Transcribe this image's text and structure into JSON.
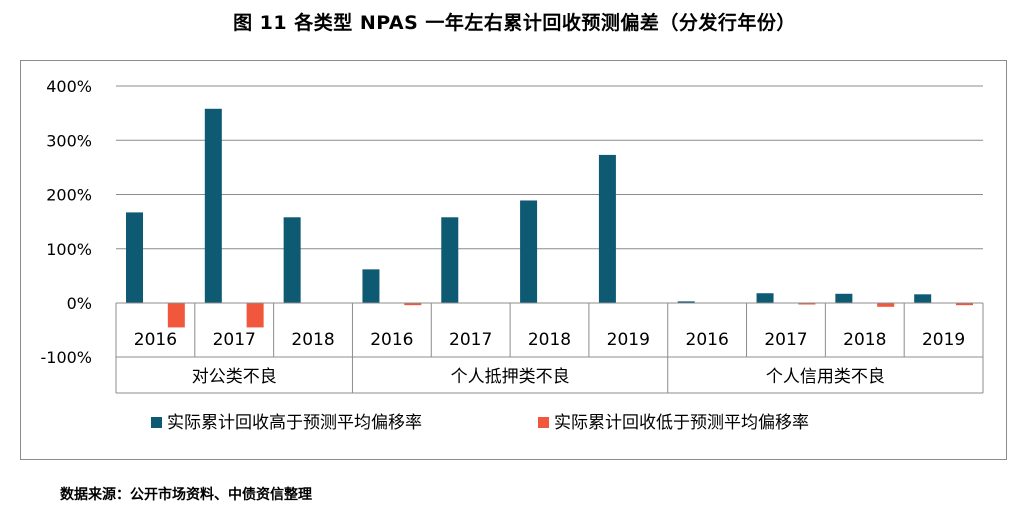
{
  "figure": {
    "title": "图 11  各类型 NPAS 一年左右累计回收预测偏差（分发行年份）",
    "source": "数据来源：公开市场资料、中债资信整理"
  },
  "chart_data": {
    "type": "bar",
    "ylim": [
      -100,
      400
    ],
    "yticks": [
      -100,
      0,
      100,
      200,
      300,
      400
    ],
    "ytick_labels": [
      "-100%",
      "0%",
      "100%",
      "200%",
      "300%",
      "400%"
    ],
    "grid": true,
    "legend_position": "bottom",
    "colors": {
      "above": "#0f5a73",
      "below": "#f0573c",
      "grid": "#8c8c8c"
    },
    "groups": [
      {
        "label": "对公类不良",
        "categories": [
          "2016",
          "2017",
          "2018"
        ]
      },
      {
        "label": "个人抵押类不良",
        "categories": [
          "2016",
          "2017",
          "2018",
          "2019"
        ]
      },
      {
        "label": "个人信用类不良",
        "categories": [
          "2016",
          "2017",
          "2018",
          "2019"
        ]
      }
    ],
    "categories": [
      "2016",
      "2017",
      "2018",
      "2016",
      "2017",
      "2018",
      "2019",
      "2016",
      "2017",
      "2018",
      "2019"
    ],
    "series": [
      {
        "name": "实际累计回收高于预测平均偏移率",
        "values": [
          167,
          358,
          158,
          62,
          158,
          189,
          273,
          3,
          18,
          17,
          16
        ]
      },
      {
        "name": "实际累计回收低于预测平均偏移率",
        "values": [
          -45,
          -45,
          0,
          -4,
          0,
          0,
          0,
          0,
          -2,
          -7,
          -4
        ]
      }
    ]
  }
}
